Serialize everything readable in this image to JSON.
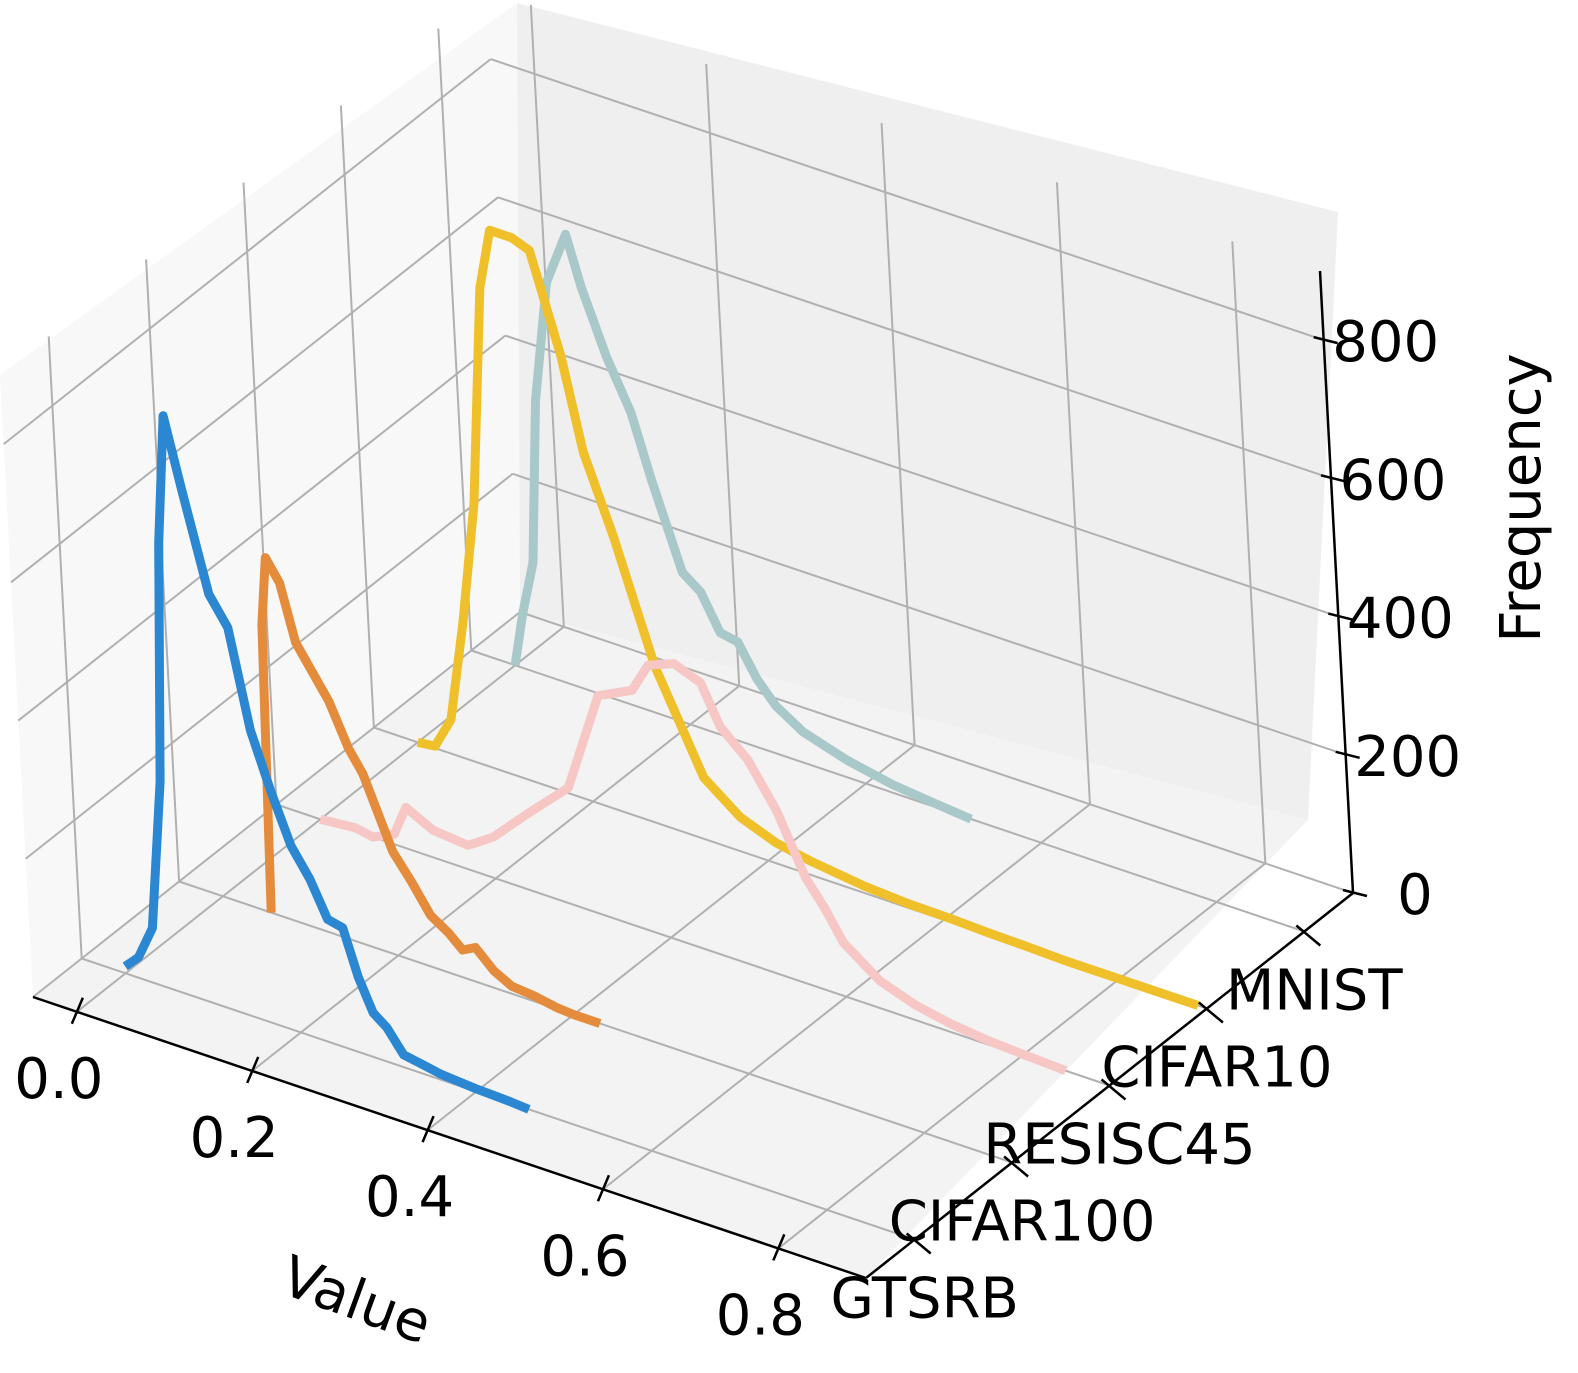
{
  "chart_data": {
    "type": "line",
    "projection": "3d",
    "xlabel": "Value",
    "zlabel": "Frequency",
    "xlim": [
      -0.05,
      0.9
    ],
    "zlim": [
      0,
      900
    ],
    "x_ticks": [
      0.0,
      0.2,
      0.4,
      0.6,
      0.8
    ],
    "x_tick_labels": [
      "0.0",
      "0.2",
      "0.4",
      "0.6",
      "0.8"
    ],
    "z_ticks": [
      0,
      200,
      400,
      600,
      800
    ],
    "z_tick_labels": [
      "0",
      "200",
      "400",
      "600",
      "800"
    ],
    "y_categories": [
      "GTSRB",
      "CIFAR100",
      "RESISC45",
      "CIFAR10",
      "MNIST"
    ],
    "series": [
      {
        "name": "GTSRB",
        "color": "#2b87d1",
        "x": [
          0.0,
          0.016,
          0.034,
          0.052,
          0.065,
          0.078,
          0.095,
          0.12,
          0.14,
          0.16,
          0.18,
          0.2,
          0.22,
          0.238,
          0.255,
          0.27,
          0.285,
          0.3,
          0.318,
          0.34,
          0.36,
          0.38,
          0.4,
          0.42,
          0.44,
          0.46
        ],
        "y": [
          10,
          30,
          80,
          300,
          650,
          840,
          740,
          600,
          560,
          420,
          340,
          270,
          230,
          180,
          175,
          110,
          65,
          50,
          18,
          13,
          8,
          6,
          4,
          3,
          2,
          0
        ]
      },
      {
        "name": "CIFAR100",
        "color": "#e48c3b",
        "x": [
          0.055,
          0.062,
          0.07,
          0.085,
          0.1,
          0.12,
          0.135,
          0.155,
          0.17,
          0.185,
          0.2,
          0.22,
          0.24,
          0.26,
          0.275,
          0.29,
          0.31,
          0.33,
          0.355,
          0.38,
          0.4,
          0.43
        ],
        "y": [
          0,
          420,
          520,
          490,
          410,
          370,
          340,
          280,
          250,
          200,
          150,
          115,
          75,
          58,
          40,
          50,
          25,
          11,
          8,
          2,
          0,
          0
        ]
      },
      {
        "name": "RESISC45",
        "color": "#f6c7c4",
        "x": [
          0.0,
          0.04,
          0.06,
          0.085,
          0.1,
          0.13,
          0.17,
          0.2,
          0.24,
          0.29,
          0.33,
          0.37,
          0.39,
          0.42,
          0.45,
          0.47,
          0.5,
          0.53,
          0.56,
          0.58,
          0.6,
          0.64,
          0.68,
          0.72,
          0.76,
          0.8,
          0.85
        ],
        "y": [
          0,
          5,
          0,
          15,
          60,
          40,
          35,
          60,
          110,
          170,
          320,
          345,
          390,
          405,
          390,
          335,
          300,
          240,
          155,
          120,
          78,
          40,
          22,
          12,
          6,
          3,
          0
        ]
      },
      {
        "name": "CIFAR10",
        "color": "#f0c02b",
        "x": [
          0.0,
          0.02,
          0.04,
          0.06,
          0.08,
          0.1,
          0.115,
          0.14,
          0.16,
          0.19,
          0.21,
          0.24,
          0.28,
          0.33,
          0.37,
          0.41,
          0.45,
          0.51,
          0.56,
          0.61,
          0.65,
          0.69,
          0.74,
          0.78,
          0.83,
          0.89
        ],
        "y": [
          0,
          3,
          50,
          200,
          380,
          700,
          790,
          790,
          780,
          640,
          510,
          400,
          230,
          90,
          50,
          30,
          20,
          10,
          6,
          5,
          3,
          2,
          0,
          0,
          0,
          0
        ]
      },
      {
        "name": "MNIST",
        "color": "#a9c8ca",
        "x": [
          0.0,
          0.012,
          0.027,
          0.04,
          0.06,
          0.085,
          0.1,
          0.125,
          0.15,
          0.17,
          0.2,
          0.22,
          0.24,
          0.26,
          0.28,
          0.3,
          0.33,
          0.38,
          0.43,
          0.48,
          0.52
        ],
        "y": [
          0,
          80,
          160,
          400,
          580,
          660,
          590,
          500,
          430,
          340,
          220,
          200,
          150,
          145,
          100,
          70,
          45,
          25,
          12,
          5,
          0
        ]
      }
    ]
  }
}
